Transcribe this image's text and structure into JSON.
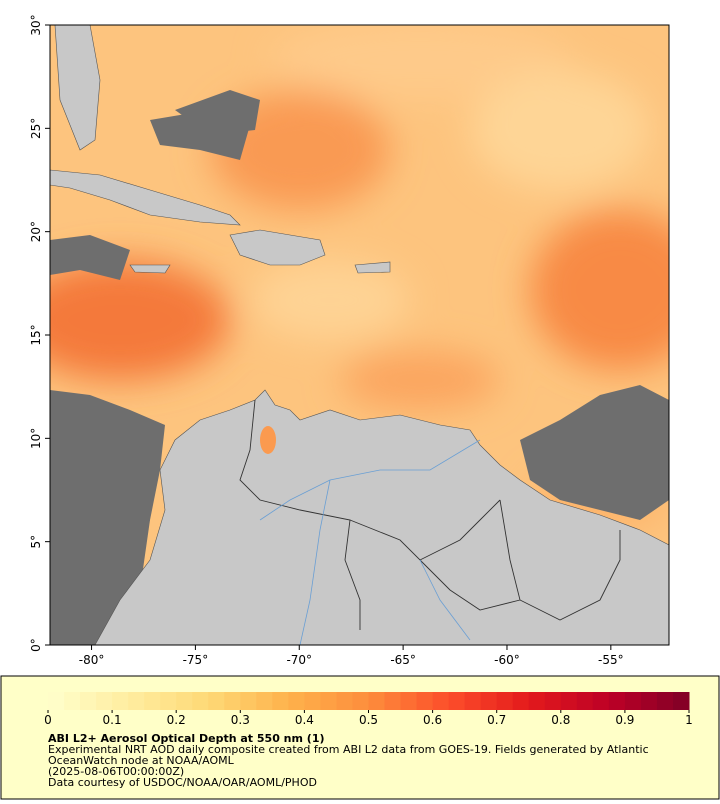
{
  "map": {
    "xlim": [
      -82,
      -52.2
    ],
    "ylim": [
      0,
      30
    ],
    "xticks": [
      {
        "value": -80,
        "label": "-80°"
      },
      {
        "value": -75,
        "label": "-75°"
      },
      {
        "value": -70,
        "label": "-70°"
      },
      {
        "value": -65,
        "label": "-65°"
      },
      {
        "value": -60,
        "label": "-60°"
      },
      {
        "value": -55,
        "label": "-55°"
      }
    ],
    "yticks": [
      {
        "value": 0,
        "label": "0°"
      },
      {
        "value": 5,
        "label": "5°"
      },
      {
        "value": 10,
        "label": "10°"
      },
      {
        "value": 15,
        "label": "15°"
      },
      {
        "value": 20,
        "label": "20°"
      },
      {
        "value": 25,
        "label": "25°"
      },
      {
        "value": 30,
        "label": "30°"
      }
    ]
  },
  "colorbar": {
    "lim": [
      0,
      1
    ],
    "ticks": [
      0,
      0.1,
      0.2,
      0.3,
      0.4,
      0.5,
      0.6,
      0.7,
      0.8,
      0.9,
      1
    ]
  },
  "caption": {
    "title": "ABI L2+ Aerosol Optical Depth at 550 nm (1)",
    "lines": [
      "Experimental NRT AOD daily composite created from ABI L2 data from GOES-19. Fields generated by Atlantic",
      "OceanWatch node at NOAA/AOML",
      "(2025-08-06T00:00:00Z)",
      "Data courtesy of USDOC/NOAA/OAR/AOML/PHOD"
    ]
  }
}
